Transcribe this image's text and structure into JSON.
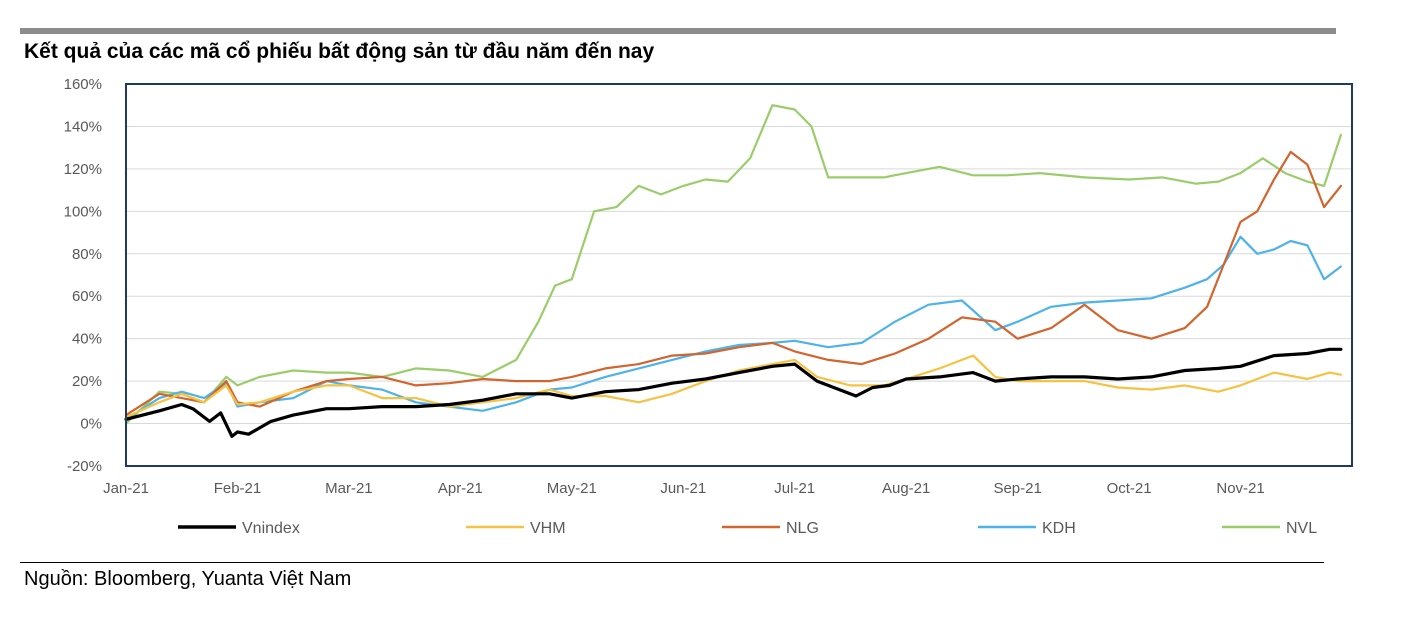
{
  "title": "Kết quả của các mã cổ phiếu bất động sản từ đầu năm đến nay",
  "source": "Nguồn: Bloomberg, Yuanta Việt Nam",
  "colors": {
    "Vnindex": "#000000",
    "VHM": "#f5c242",
    "NLG": "#d2642e",
    "KDH": "#4db3ea",
    "NVL": "#9acd6a",
    "axis": "#1f3864",
    "grid": "#d9d9d9"
  },
  "chart_data": {
    "type": "line",
    "title": "",
    "xlabel": "",
    "ylabel": "",
    "x_range": [
      0,
      11
    ],
    "ylim": [
      -20,
      160
    ],
    "y_ticks": [
      "160%",
      "140%",
      "120%",
      "100%",
      "80%",
      "60%",
      "40%",
      "20%",
      "0%",
      "-20%"
    ],
    "y_tick_values": [
      160,
      140,
      120,
      100,
      80,
      60,
      40,
      20,
      0,
      -20
    ],
    "x_ticks": [
      "Jan-21",
      "Feb-21",
      "Mar-21",
      "Apr-21",
      "May-21",
      "Jun-21",
      "Jul-21",
      "Aug-21",
      "Sep-21",
      "Oct-21",
      "Nov-21"
    ],
    "x_tick_values": [
      0,
      1,
      2,
      3,
      4,
      5,
      6,
      7,
      8,
      9,
      10
    ],
    "grid": true,
    "legend": "bottom",
    "series": [
      {
        "name": "Vnindex",
        "x": [
          0,
          0.3,
          0.5,
          0.6,
          0.75,
          0.85,
          0.95,
          1.0,
          1.1,
          1.3,
          1.5,
          1.8,
          2.0,
          2.3,
          2.6,
          2.9,
          3.2,
          3.5,
          3.8,
          4.0,
          4.3,
          4.6,
          4.9,
          5.2,
          5.5,
          5.8,
          6.0,
          6.2,
          6.4,
          6.55,
          6.7,
          6.85,
          7.0,
          7.3,
          7.6,
          7.8,
          8.0,
          8.3,
          8.6,
          8.9,
          9.2,
          9.5,
          9.8,
          10.0,
          10.3,
          10.6,
          10.8,
          10.9
        ],
        "y": [
          2,
          6,
          9,
          7,
          1,
          5,
          -6,
          -4,
          -5,
          1,
          4,
          7,
          7,
          8,
          8,
          9,
          11,
          14,
          14,
          12,
          15,
          16,
          19,
          21,
          24,
          27,
          28,
          20,
          16,
          13,
          17,
          18,
          21,
          22,
          24,
          20,
          21,
          22,
          22,
          21,
          22,
          25,
          26,
          27,
          32,
          33,
          35,
          35
        ]
      },
      {
        "name": "VHM",
        "x": [
          0,
          0.3,
          0.5,
          0.7,
          0.9,
          1.0,
          1.2,
          1.5,
          1.8,
          2.0,
          2.3,
          2.6,
          2.9,
          3.2,
          3.5,
          3.8,
          4.0,
          4.3,
          4.6,
          4.9,
          5.2,
          5.5,
          5.8,
          6.0,
          6.2,
          6.5,
          6.8,
          7.0,
          7.3,
          7.6,
          7.8,
          8.0,
          8.3,
          8.6,
          8.9,
          9.2,
          9.5,
          9.8,
          10.0,
          10.3,
          10.6,
          10.8,
          10.9
        ],
        "y": [
          3,
          10,
          14,
          10,
          18,
          9,
          10,
          15,
          18,
          18,
          12,
          12,
          8,
          10,
          12,
          16,
          13,
          13,
          10,
          14,
          20,
          25,
          28,
          30,
          22,
          18,
          18,
          21,
          26,
          32,
          22,
          20,
          20,
          20,
          17,
          16,
          18,
          15,
          18,
          24,
          21,
          24,
          23
        ]
      },
      {
        "name": "NLG",
        "x": [
          0,
          0.3,
          0.5,
          0.7,
          0.9,
          1.0,
          1.2,
          1.5,
          1.8,
          2.0,
          2.3,
          2.6,
          2.9,
          3.2,
          3.5,
          3.8,
          4.0,
          4.3,
          4.6,
          4.9,
          5.2,
          5.5,
          5.8,
          6.0,
          6.3,
          6.6,
          6.9,
          7.2,
          7.5,
          7.8,
          8.0,
          8.3,
          8.6,
          8.9,
          9.2,
          9.5,
          9.7,
          9.85,
          10.0,
          10.15,
          10.3,
          10.45,
          10.6,
          10.75,
          10.9
        ],
        "y": [
          4,
          14,
          12,
          10,
          20,
          10,
          8,
          15,
          20,
          21,
          22,
          18,
          19,
          21,
          20,
          20,
          22,
          26,
          28,
          32,
          33,
          36,
          38,
          34,
          30,
          28,
          33,
          40,
          50,
          48,
          40,
          45,
          56,
          44,
          40,
          45,
          55,
          75,
          95,
          100,
          115,
          128,
          122,
          102,
          112
        ]
      },
      {
        "name": "KDH",
        "x": [
          0,
          0.3,
          0.5,
          0.7,
          0.9,
          1.0,
          1.2,
          1.5,
          1.8,
          2.0,
          2.3,
          2.6,
          2.9,
          3.2,
          3.5,
          3.8,
          4.0,
          4.3,
          4.6,
          4.9,
          5.2,
          5.5,
          5.8,
          6.0,
          6.3,
          6.6,
          6.9,
          7.2,
          7.5,
          7.8,
          8.0,
          8.3,
          8.6,
          8.9,
          9.2,
          9.5,
          9.7,
          9.85,
          10.0,
          10.15,
          10.3,
          10.45,
          10.6,
          10.75,
          10.9
        ],
        "y": [
          2,
          12,
          15,
          12,
          19,
          8,
          10,
          12,
          20,
          18,
          16,
          10,
          8,
          6,
          10,
          16,
          17,
          22,
          26,
          30,
          34,
          37,
          38,
          39,
          36,
          38,
          48,
          56,
          58,
          44,
          48,
          55,
          57,
          58,
          59,
          64,
          68,
          75,
          88,
          80,
          82,
          86,
          84,
          68,
          74
        ]
      },
      {
        "name": "NVL",
        "x": [
          0,
          0.3,
          0.5,
          0.7,
          0.9,
          1.0,
          1.2,
          1.5,
          1.8,
          2.0,
          2.3,
          2.6,
          2.9,
          3.2,
          3.5,
          3.7,
          3.85,
          4.0,
          4.2,
          4.4,
          4.6,
          4.8,
          5.0,
          5.2,
          5.4,
          5.6,
          5.8,
          6.0,
          6.15,
          6.3,
          6.5,
          6.8,
          7.0,
          7.3,
          7.6,
          7.9,
          8.2,
          8.6,
          9.0,
          9.3,
          9.6,
          9.8,
          10.0,
          10.2,
          10.4,
          10.6,
          10.75,
          10.9
        ],
        "y": [
          0,
          15,
          14,
          10,
          22,
          18,
          22,
          25,
          24,
          24,
          22,
          26,
          25,
          22,
          30,
          48,
          65,
          68,
          100,
          102,
          112,
          108,
          112,
          115,
          114,
          125,
          150,
          148,
          140,
          116,
          116,
          116,
          118,
          121,
          117,
          117,
          118,
          116,
          115,
          116,
          113,
          114,
          118,
          125,
          118,
          114,
          112,
          136
        ]
      }
    ]
  }
}
